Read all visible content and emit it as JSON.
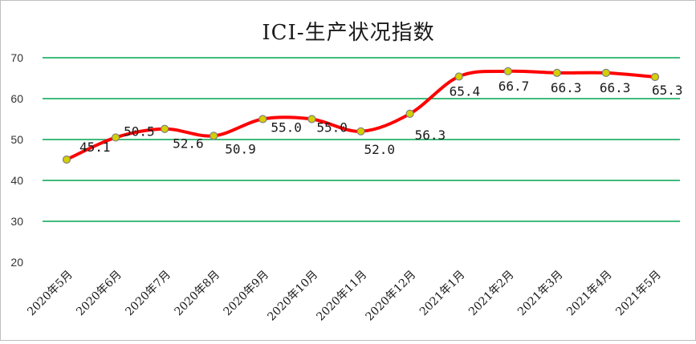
{
  "chart_data": {
    "type": "line",
    "title": "ICI-生产状况指数",
    "xlabel": "",
    "ylabel": "",
    "ylim": [
      20,
      70
    ],
    "yticks": [
      20,
      30,
      40,
      50,
      60,
      70
    ],
    "grid": true,
    "smooth": true,
    "categories": [
      "2020年5月",
      "2020年6月",
      "2020年7月",
      "2020年8月",
      "2020年9月",
      "2020年10月",
      "2020年11月",
      "2020年12月",
      "2021年1月",
      "2021年2月",
      "2021年3月",
      "2021年4月",
      "2021年5月"
    ],
    "series": [
      {
        "values": [
          45.1,
          50.5,
          52.6,
          50.9,
          55.0,
          55.0,
          52.0,
          56.3,
          65.4,
          66.7,
          66.3,
          66.3,
          65.3
        ],
        "labels": [
          "45.1",
          "50.5",
          "52.6",
          "50.9",
          "55.0",
          "55.0",
          "52.0",
          "56.3",
          "65.4",
          "66.7",
          "66.3",
          "66.3",
          "65.3"
        ]
      }
    ],
    "colors": {
      "line": "#ff0000",
      "grid": "#00a651",
      "marker_fill": "#d4d000",
      "marker_stroke": "#7f7f7f"
    }
  }
}
